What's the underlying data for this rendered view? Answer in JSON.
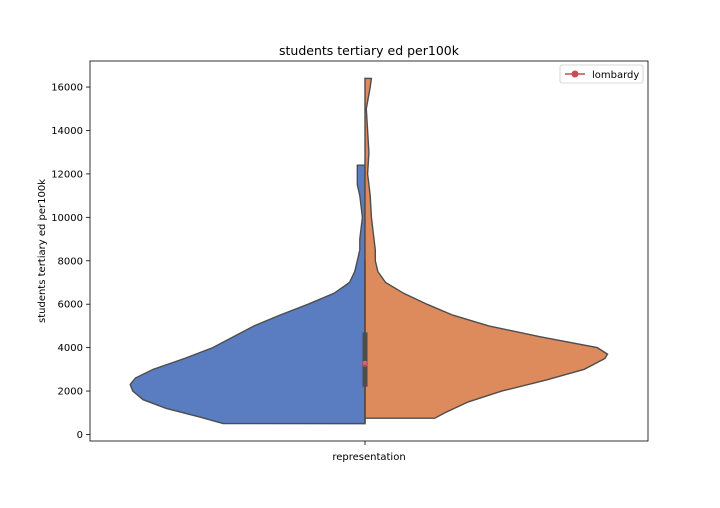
{
  "chart_data": {
    "type": "violin",
    "title": "students tertiary ed per100k",
    "xlabel": "",
    "ylabel": "students tertiary ed per100k",
    "categories": [
      "representation"
    ],
    "ylim": [
      -300,
      17200
    ],
    "yticks": [
      0,
      2000,
      4000,
      6000,
      8000,
      10000,
      12000,
      14000,
      16000
    ],
    "ytick_labels": [
      "0",
      "2000",
      "4000",
      "6000",
      "8000",
      "10000",
      "12000",
      "14000",
      "16000"
    ],
    "grid": false,
    "legend": {
      "position": "top-right",
      "entries": [
        {
          "label": "lombardy",
          "color": "#c44e52",
          "marker": "circle-line"
        }
      ]
    },
    "box": {
      "q1": 2200,
      "median": 3300,
      "q3": 4700,
      "whisker_low": 500,
      "whisker_high": 8000
    },
    "highlight_point": {
      "label": "lombardy",
      "value": 3300
    },
    "series": [
      {
        "side": "left",
        "color": "#5a7dc2",
        "min": 500,
        "max": 12400,
        "profile": [
          [
            500,
            0.55
          ],
          [
            800,
            0.64
          ],
          [
            1200,
            0.77
          ],
          [
            1600,
            0.86
          ],
          [
            2000,
            0.9
          ],
          [
            2300,
            0.91
          ],
          [
            2600,
            0.89
          ],
          [
            3000,
            0.82
          ],
          [
            3500,
            0.7
          ],
          [
            4000,
            0.59
          ],
          [
            4500,
            0.51
          ],
          [
            5000,
            0.43
          ],
          [
            5500,
            0.33
          ],
          [
            6000,
            0.22
          ],
          [
            6500,
            0.12
          ],
          [
            7000,
            0.06
          ],
          [
            7500,
            0.04
          ],
          [
            8000,
            0.03
          ],
          [
            8500,
            0.02
          ],
          [
            9000,
            0.02
          ],
          [
            10000,
            0.01
          ],
          [
            11000,
            0.02
          ],
          [
            11500,
            0.03
          ],
          [
            12000,
            0.03
          ],
          [
            12400,
            0.03
          ]
        ]
      },
      {
        "side": "right",
        "color": "#dd8a5d",
        "min": 750,
        "max": 16400,
        "profile": [
          [
            750,
            0.27
          ],
          [
            1000,
            0.31
          ],
          [
            1500,
            0.4
          ],
          [
            2000,
            0.53
          ],
          [
            2500,
            0.7
          ],
          [
            3000,
            0.85
          ],
          [
            3500,
            0.93
          ],
          [
            3700,
            0.94
          ],
          [
            4000,
            0.9
          ],
          [
            4500,
            0.68
          ],
          [
            5000,
            0.48
          ],
          [
            5500,
            0.34
          ],
          [
            6000,
            0.24
          ],
          [
            6500,
            0.15
          ],
          [
            7000,
            0.08
          ],
          [
            7500,
            0.05
          ],
          [
            8000,
            0.04
          ],
          [
            8500,
            0.04
          ],
          [
            9000,
            0.035
          ],
          [
            10000,
            0.025
          ],
          [
            11000,
            0.02
          ],
          [
            12000,
            0.01
          ],
          [
            13000,
            0.015
          ],
          [
            14000,
            0.01
          ],
          [
            15000,
            0.005
          ],
          [
            16000,
            0.02
          ],
          [
            16400,
            0.025
          ]
        ]
      }
    ]
  }
}
